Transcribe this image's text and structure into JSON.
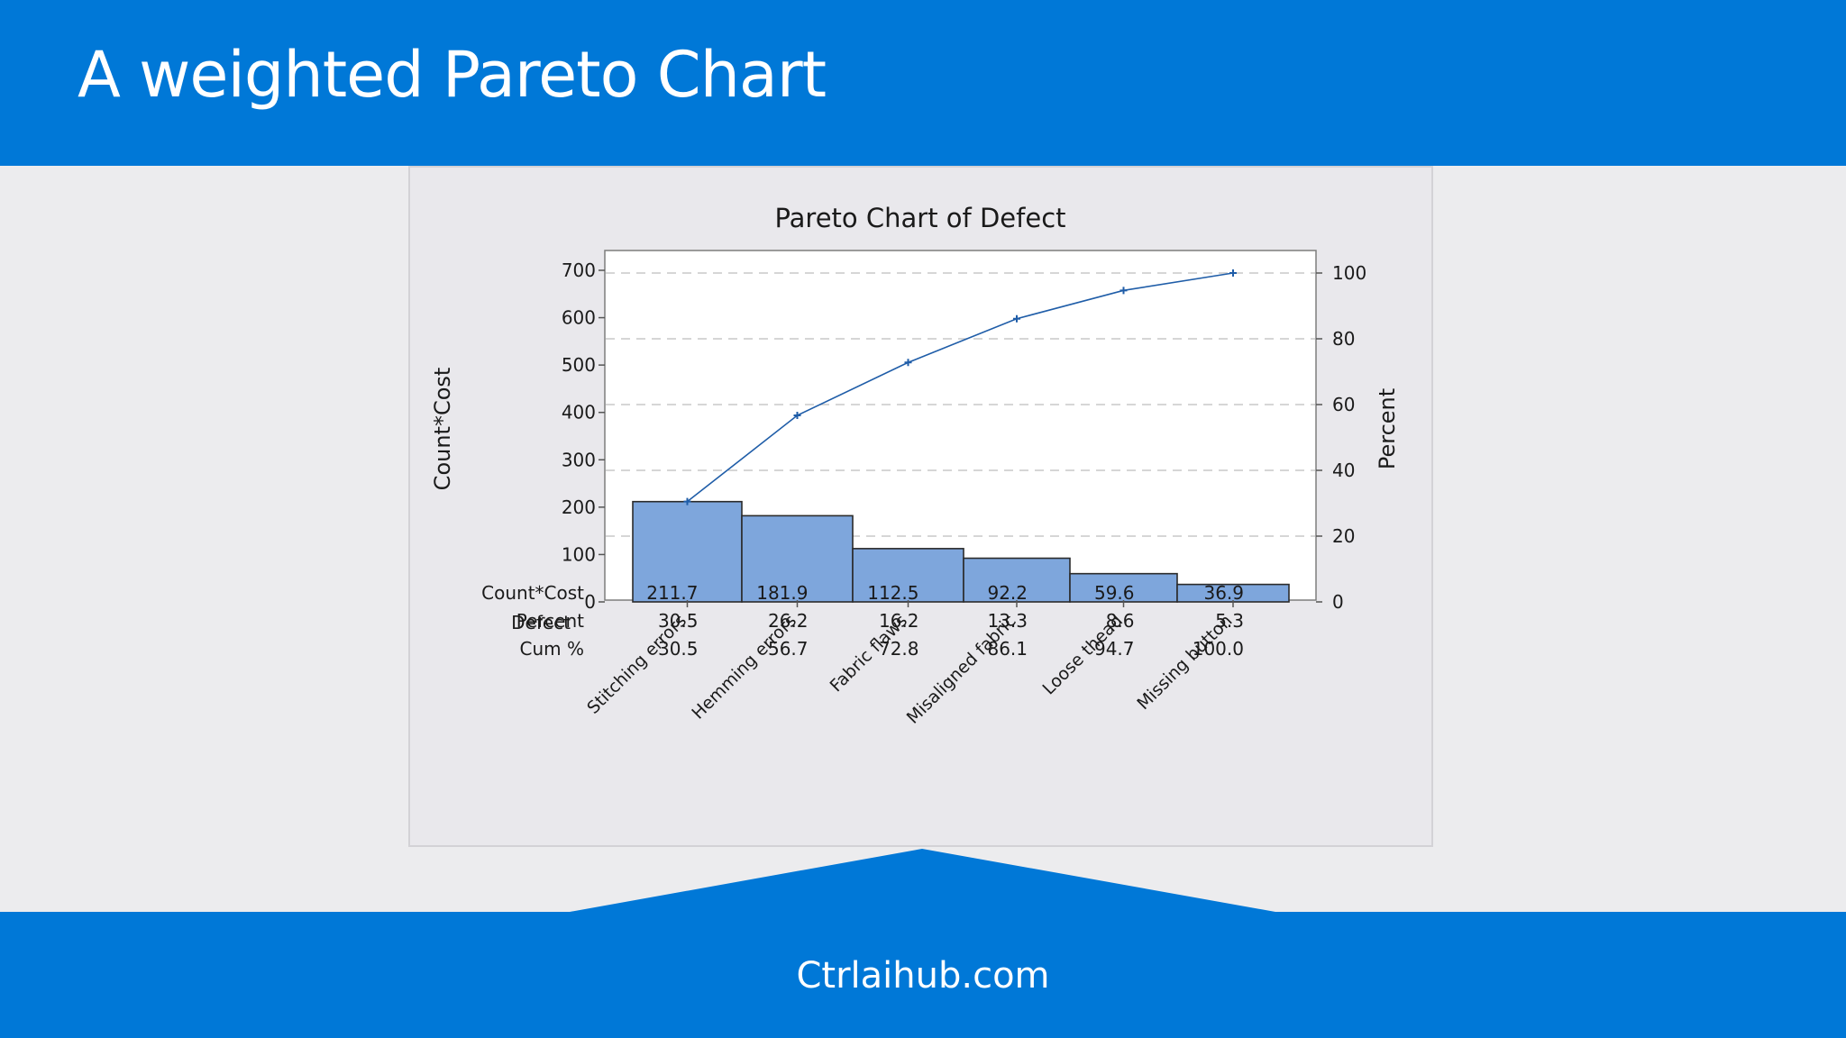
{
  "header": {
    "title": "A weighted Pareto Chart"
  },
  "footer": {
    "text": "Ctrlaihub.com"
  },
  "colors": {
    "brand": "#0078d7",
    "bar_fill": "#7ea6dc",
    "bar_edge": "#2b2b2b",
    "line": "#1f5da8"
  },
  "chart_data": {
    "type": "bar",
    "title": "Pareto Chart of Defect",
    "xlabel": "Defect",
    "ylabel": "Count*Cost",
    "y2label": "Percent",
    "ylim": [
      0,
      700
    ],
    "y2lim": [
      0,
      100
    ],
    "y_ticks": [
      0,
      100,
      200,
      300,
      400,
      500,
      600,
      700
    ],
    "y2_ticks": [
      0,
      20,
      40,
      60,
      80,
      100
    ],
    "categories": [
      "Stitching errors",
      "Hemming errors",
      "Fabric flaws",
      "Misaligned fabric",
      "Loose thead",
      "Missing button"
    ],
    "series": [
      {
        "name": "Count*Cost",
        "type": "bar",
        "values": [
          211.7,
          181.9,
          112.5,
          92.2,
          59.6,
          36.9
        ]
      },
      {
        "name": "Cum %",
        "type": "line",
        "values": [
          30.5,
          56.7,
          72.8,
          86.1,
          94.7,
          100.0
        ]
      }
    ],
    "grid": "horizontal dashed",
    "table": {
      "row_labels": [
        "Count*Cost",
        "Percent",
        "Cum %"
      ],
      "rows": [
        [
          "211.7",
          "181.9",
          "112.5",
          "92.2",
          "59.6",
          "36.9"
        ],
        [
          "30.5",
          "26.2",
          "16.2",
          "13.3",
          "8.6",
          "5.3"
        ],
        [
          "30.5",
          "56.7",
          "72.8",
          "86.1",
          "94.7",
          "100.0"
        ]
      ]
    }
  }
}
